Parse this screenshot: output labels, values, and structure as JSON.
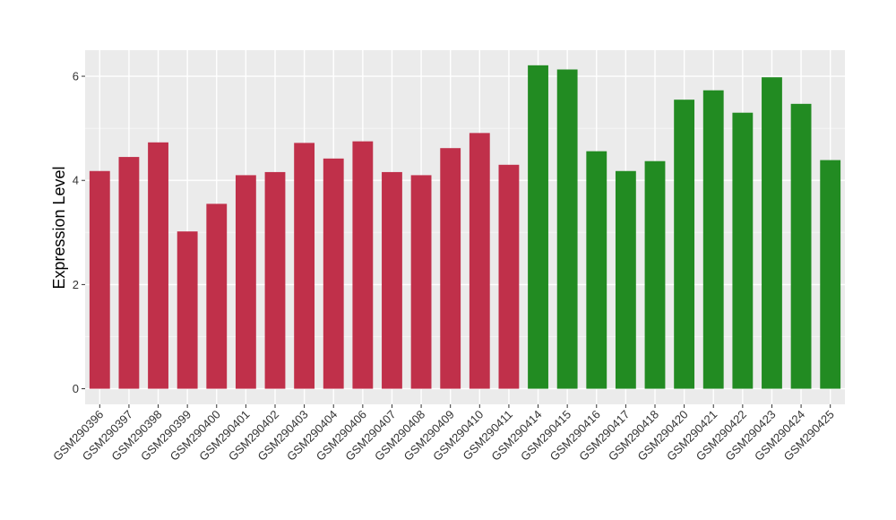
{
  "chart_data": {
    "type": "bar",
    "title": "",
    "xlabel": "",
    "ylabel": "Expression Level",
    "ylim": [
      -0.3,
      6.5
    ],
    "yticks": [
      0,
      2,
      4,
      6
    ],
    "grid": true,
    "legend": "none",
    "categories": [
      "GSM290396",
      "GSM290397",
      "GSM290398",
      "GSM290399",
      "GSM290400",
      "GSM290401",
      "GSM290402",
      "GSM290403",
      "GSM290404",
      "GSM290406",
      "GSM290407",
      "GSM290408",
      "GSM290409",
      "GSM290410",
      "GSM290411",
      "GSM290414",
      "GSM290415",
      "GSM290416",
      "GSM290417",
      "GSM290418",
      "GSM290420",
      "GSM290421",
      "GSM290422",
      "GSM290423",
      "GSM290424",
      "GSM290425"
    ],
    "values": [
      4.18,
      4.45,
      4.73,
      3.02,
      3.55,
      4.1,
      4.16,
      4.72,
      4.42,
      4.75,
      4.16,
      4.1,
      4.62,
      4.91,
      4.3,
      6.21,
      6.13,
      4.56,
      4.18,
      4.37,
      5.55,
      5.73,
      5.3,
      5.98,
      5.47,
      4.39
    ],
    "group": [
      0,
      0,
      0,
      0,
      0,
      0,
      0,
      0,
      0,
      0,
      0,
      0,
      0,
      0,
      0,
      1,
      1,
      1,
      1,
      1,
      1,
      1,
      1,
      1,
      1,
      1
    ],
    "group_colors": [
      "#c0304a",
      "#228b22"
    ]
  },
  "colors": {
    "panel_background": "#ebebeb",
    "grid_major": "#ffffff",
    "grid_minor": "#f5f5f5",
    "tick_mark": "#333333"
  }
}
